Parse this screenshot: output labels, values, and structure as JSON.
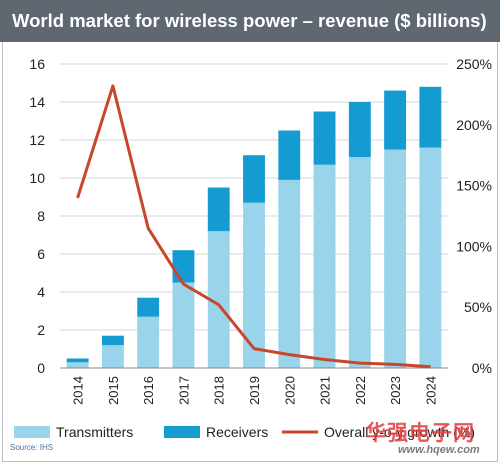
{
  "title": "World market for wireless power – revenue ($ billions)",
  "source": "Source: IHS",
  "watermark": {
    "text": "华强电子网",
    "url": "www.hqew.com"
  },
  "colors": {
    "transmitters": "#99d4ea",
    "receivers": "#139bd2",
    "growth": "#c8472b",
    "title_bg": "#5f6770"
  },
  "chart_data": {
    "type": "bar",
    "stacked": true,
    "categories": [
      "2014",
      "2015",
      "2016",
      "2017",
      "2018",
      "2019",
      "2020",
      "2021",
      "2022",
      "2023",
      "2024"
    ],
    "series": [
      {
        "name": "Transmitters",
        "type": "bar",
        "axis": "left",
        "values": [
          0.3,
          1.2,
          2.7,
          4.5,
          7.2,
          8.7,
          9.9,
          10.7,
          11.1,
          11.5,
          11.6
        ]
      },
      {
        "name": "Receivers",
        "type": "bar",
        "axis": "left",
        "values": [
          0.2,
          0.5,
          1.0,
          1.7,
          2.3,
          2.5,
          2.6,
          2.8,
          2.9,
          3.1,
          3.2
        ]
      },
      {
        "name": "Overall y-o-y growth (%)",
        "type": "line",
        "axis": "right",
        "values": [
          140,
          232,
          115,
          69,
          52,
          16,
          11,
          7,
          4,
          3,
          1
        ]
      }
    ],
    "ylim": [
      0,
      16
    ],
    "yticks": [
      "0",
      "2",
      "4",
      "6",
      "8",
      "10",
      "12",
      "14",
      "16"
    ],
    "y2lim": [
      0,
      250
    ],
    "y2ticks": [
      "0%",
      "50%",
      "100%",
      "150%",
      "200%",
      "250%"
    ],
    "grid": true,
    "legend": "bottom"
  }
}
